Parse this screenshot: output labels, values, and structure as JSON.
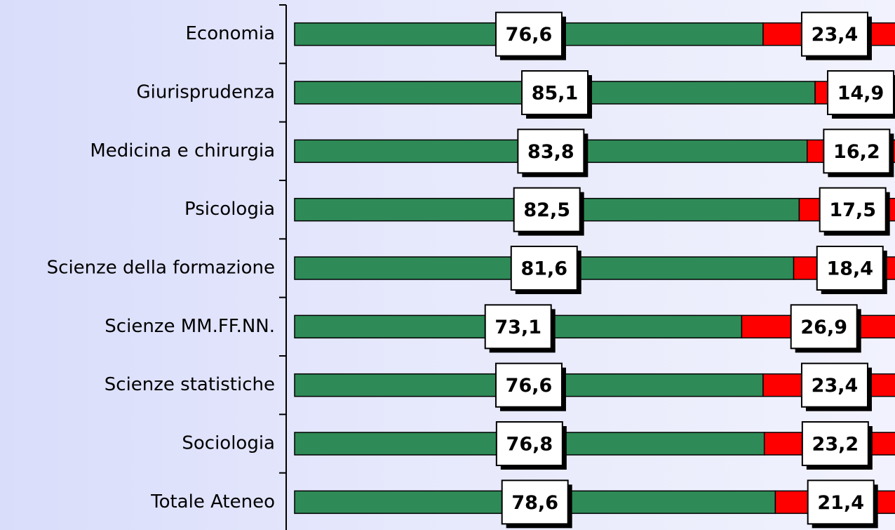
{
  "chart_data": {
    "type": "stacked-bar-horizontal",
    "categories": [
      "Economia",
      "Giurisprudenza",
      "Medicina e chirurgia",
      "Psicologia",
      "Scienze della formazione",
      "Scienze MM.FF.NN.",
      "Scienze statistiche",
      "Sociologia",
      "Totale Ateneo"
    ],
    "series": [
      {
        "color": "#2e8b57",
        "values": [
          76.6,
          85.1,
          83.8,
          82.5,
          81.6,
          73.1,
          76.6,
          76.8,
          78.6
        ],
        "value_labels": [
          "76,6",
          "85,1",
          "83,8",
          "82,5",
          "81,6",
          "73,1",
          "76,6",
          "76,8",
          "78,6"
        ]
      },
      {
        "color": "#ff0000",
        "values": [
          23.4,
          14.9,
          16.2,
          17.5,
          18.4,
          26.9,
          23.4,
          23.2,
          21.4
        ],
        "value_labels": [
          "23,4",
          "14,9",
          "16,2",
          "17,5",
          "18,4",
          "26,9",
          "23,4",
          "23,2",
          "21,4"
        ]
      }
    ],
    "xlim": [
      0,
      100
    ]
  }
}
